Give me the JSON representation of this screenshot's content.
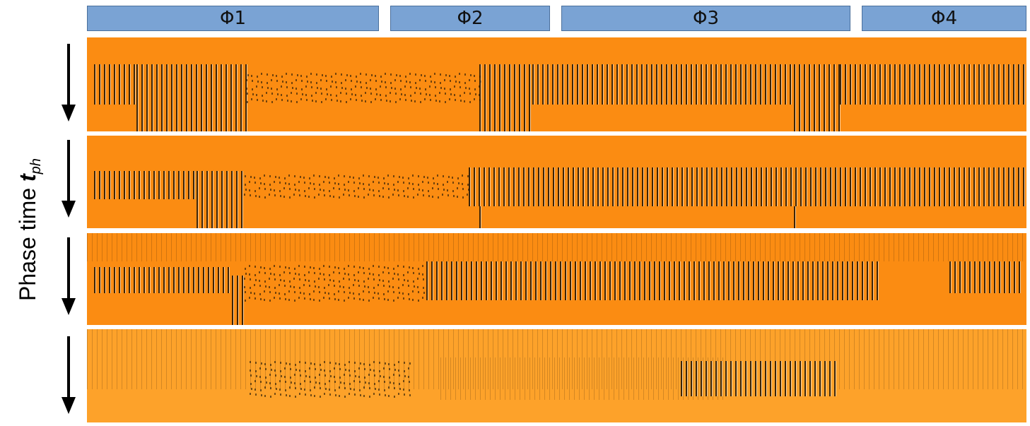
{
  "phases": [
    "Φ1",
    "Φ2",
    "Φ3",
    "Φ4"
  ],
  "axis_label": {
    "text": "Phase time ",
    "symbol": "t",
    "subscript": "ph"
  },
  "colors": {
    "background_orange": "#fb8c12",
    "light_orange": "#fda22a",
    "dark_stripe": "#1a1206",
    "phase_box": "#7aa3d4"
  }
}
